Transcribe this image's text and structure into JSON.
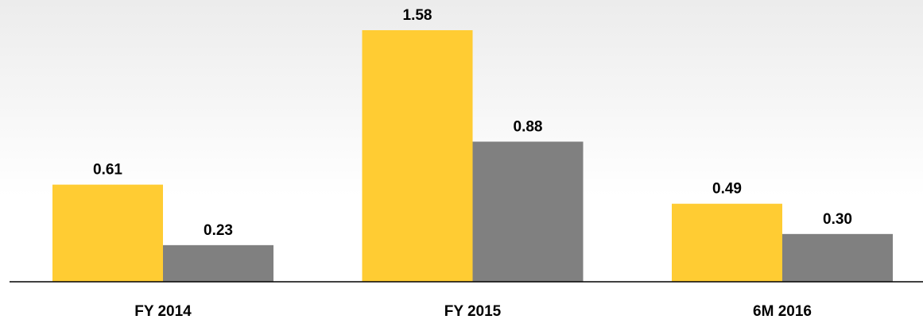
{
  "chart_data": {
    "type": "bar",
    "categories": [
      "FY 2014",
      "FY 2015",
      "6M 2016"
    ],
    "series": [
      {
        "color": "#FFCC33",
        "values": [
          0.61,
          1.58,
          0.49
        ],
        "value_labels": [
          "0.61",
          "1.58",
          "0.49"
        ]
      },
      {
        "color": "#808080",
        "values": [
          0.23,
          0.88,
          0.3
        ],
        "value_labels": [
          "0.23",
          "0.88",
          "0.30"
        ]
      }
    ]
  }
}
